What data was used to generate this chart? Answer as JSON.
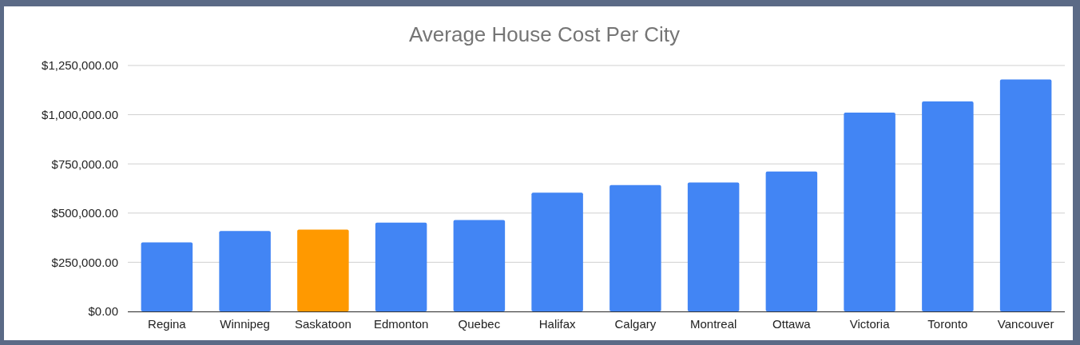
{
  "chart_data": {
    "type": "bar",
    "title": "Average House Cost Per City",
    "categories": [
      "Regina",
      "Winnipeg",
      "Saskatoon",
      "Edmonton",
      "Quebec",
      "Halifax",
      "Calgary",
      "Montreal",
      "Ottawa",
      "Victoria",
      "Toronto",
      "Vancouver"
    ],
    "values": [
      351000,
      409000,
      416000,
      452000,
      465000,
      604000,
      642000,
      655000,
      711000,
      1011000,
      1067000,
      1179000
    ],
    "colors": [
      "#4285f4",
      "#4285f4",
      "#ff9900",
      "#4285f4",
      "#4285f4",
      "#4285f4",
      "#4285f4",
      "#4285f4",
      "#4285f4",
      "#4285f4",
      "#4285f4",
      "#4285f4"
    ],
    "ylim": [
      0,
      1250000
    ],
    "yticks": [
      {
        "value": 0,
        "label": "$0.00"
      },
      {
        "value": 250000,
        "label": "$250,000.00"
      },
      {
        "value": 500000,
        "label": "$500,000.00"
      },
      {
        "value": 750000,
        "label": "$750,000.00"
      },
      {
        "value": 1000000,
        "label": "$1,000,000.00"
      },
      {
        "value": 1250000,
        "label": "$1,250,000.00"
      }
    ],
    "grid": "y"
  }
}
